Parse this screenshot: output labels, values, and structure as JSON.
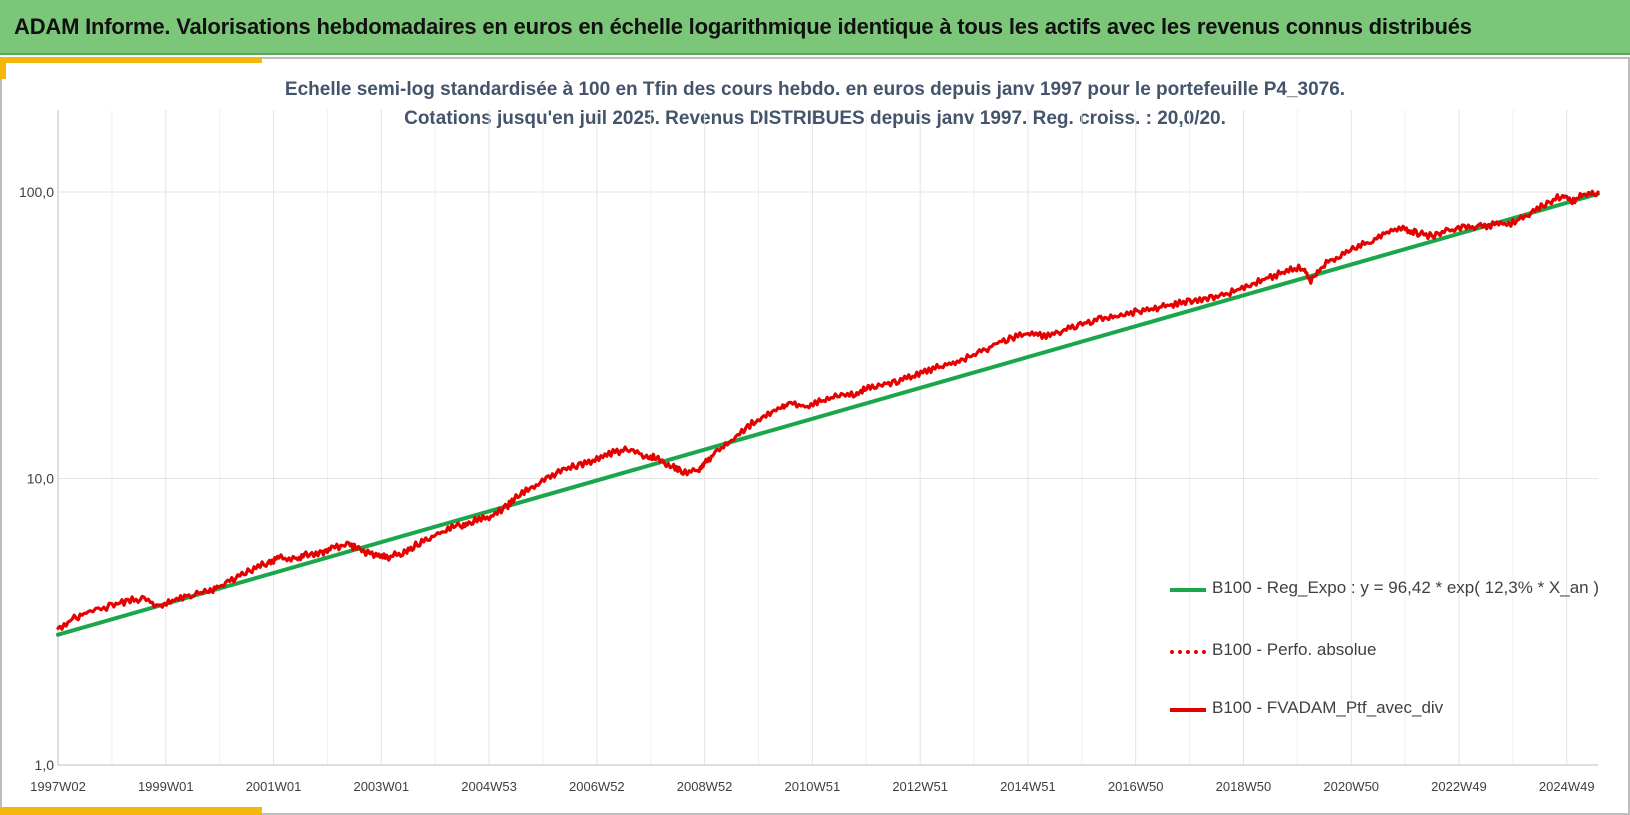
{
  "header": {
    "title": "ADAM Informe. Valorisations hebdomadaires en euros en échelle logarithmique identique à tous les actifs avec les revenus connus distribués"
  },
  "colors": {
    "header_bg": "#7cc67a",
    "accent": "#f3b80a",
    "regression": "#1aa64a",
    "portfolio": "#e60000",
    "subtitle_text": "#44546a",
    "grid": "#e3e3e3"
  },
  "chart_data": {
    "type": "line",
    "title_line1": "Echelle semi-log standardisée  à 100 en Tfin des cours hebdo.  en euros depuis janv 1997 pour  le portefeuille P4_3076.",
    "title_line2": "Cotations  jusqu'en juil 2025. Revenus DISTRIBUES depuis janv 1997. Reg. croiss. : 20,0/20.",
    "y_scale": "log",
    "ylim": [
      1,
      200
    ],
    "y_tick_values": [
      1,
      10,
      100
    ],
    "y_tick_labels": [
      "1,0",
      "10,0",
      "100,0"
    ],
    "x_tick_labels": [
      "1997W02",
      "1999W01",
      "2001W01",
      "2003W01",
      "2004W53",
      "2006W52",
      "2008W52",
      "2010W51",
      "2012W51",
      "2014W51",
      "2016W50",
      "2018W50",
      "2020W50",
      "2022W49",
      "2024W49"
    ],
    "x_tick_years": [
      1997.0,
      1999.0,
      2001.0,
      2003.0,
      2005.0,
      2007.0,
      2009.0,
      2011.0,
      2013.0,
      2015.0,
      2017.0,
      2019.0,
      2021.0,
      2023.0,
      2025.0
    ],
    "xlim": [
      1997.0,
      2025.58
    ],
    "grid": true,
    "legend_position": "right",
    "series": [
      {
        "name": "B100 - Reg_Expo : y = 96,42 * exp( 12,3% *  X_an )",
        "color": "#1aa64a",
        "style": "solid",
        "x": [
          1997.0,
          2025.58
        ],
        "y": [
          2.85,
          98.5
        ]
      },
      {
        "name": "B100 - Perfo. absolue",
        "color": "#e60000",
        "style": "dotted",
        "x": [],
        "y": []
      },
      {
        "name": "B100 - FVADAM_Ptf_avec_div",
        "color": "#e60000",
        "style": "solid",
        "x": [
          1997.0,
          1997.3,
          1997.6,
          1998.0,
          1998.3,
          1998.6,
          1998.9,
          1999.2,
          1999.5,
          1999.8,
          2000.0,
          2000.3,
          2000.6,
          2000.9,
          2001.1,
          2001.4,
          2001.6,
          2001.9,
          2002.1,
          2002.4,
          2002.6,
          2002.9,
          2003.1,
          2003.4,
          2003.6,
          2003.9,
          2004.2,
          2004.5,
          2004.7,
          2005.0,
          2005.3,
          2005.5,
          2005.8,
          2006.1,
          2006.4,
          2006.7,
          2007.0,
          2007.3,
          2007.6,
          2007.9,
          2008.1,
          2008.4,
          2008.6,
          2008.9,
          2009.0,
          2009.2,
          2009.5,
          2009.8,
          2010.1,
          2010.4,
          2010.6,
          2010.9,
          2011.2,
          2011.5,
          2011.8,
          2012.0,
          2012.3,
          2012.6,
          2012.9,
          2013.2,
          2013.5,
          2013.8,
          2014.1,
          2014.4,
          2014.7,
          2015.0,
          2015.3,
          2015.6,
          2015.9,
          2016.2,
          2016.5,
          2016.8,
          2017.1,
          2017.4,
          2017.7,
          2018.0,
          2018.3,
          2018.6,
          2018.9,
          2019.2,
          2019.5,
          2019.8,
          2020.1,
          2020.25,
          2020.5,
          2020.8,
          2021.1,
          2021.4,
          2021.7,
          2022.0,
          2022.2,
          2022.5,
          2022.8,
          2023.1,
          2023.4,
          2023.7,
          2024.0,
          2024.3,
          2024.6,
          2024.9,
          2025.1,
          2025.3,
          2025.58
        ],
        "y": [
          3.0,
          3.25,
          3.45,
          3.6,
          3.75,
          3.8,
          3.55,
          3.8,
          3.95,
          4.05,
          4.2,
          4.5,
          4.8,
          5.1,
          5.3,
          5.2,
          5.4,
          5.5,
          5.7,
          5.9,
          5.6,
          5.4,
          5.3,
          5.5,
          5.8,
          6.2,
          6.6,
          6.9,
          7.1,
          7.3,
          7.9,
          8.6,
          9.3,
          10.1,
          10.8,
          11.2,
          11.6,
          12.3,
          12.6,
          12.0,
          11.8,
          11.0,
          10.5,
          10.8,
          11.4,
          12.2,
          13.5,
          15.2,
          16.5,
          17.5,
          18.3,
          17.8,
          18.8,
          19.5,
          19.8,
          20.5,
          21.3,
          22.0,
          23.0,
          24.0,
          24.8,
          26.0,
          27.5,
          29.5,
          31.0,
          32.0,
          31.5,
          32.5,
          34.0,
          35.5,
          36.5,
          37.5,
          38.5,
          39.5,
          40.5,
          41.5,
          42.5,
          43.5,
          45.5,
          48.0,
          50.5,
          53.0,
          55.0,
          49.0,
          56.0,
          60.0,
          64.0,
          68.0,
          73.0,
          74.0,
          72.0,
          70.0,
          73.0,
          75.0,
          76.0,
          77.0,
          78.0,
          84.0,
          91.0,
          97.0,
          93.0,
          98.0,
          100.0
        ]
      }
    ]
  }
}
